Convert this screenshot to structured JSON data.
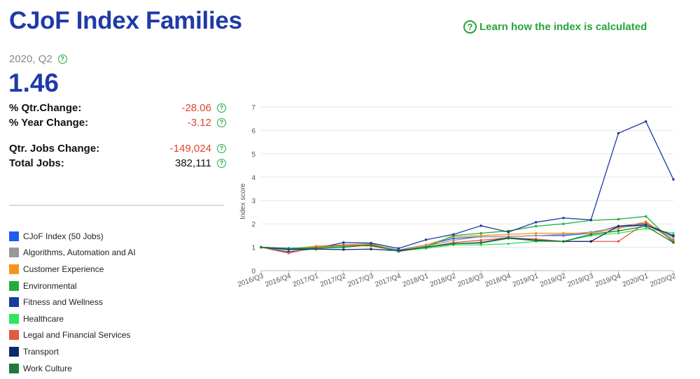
{
  "header": {
    "title": "CJoF Index Families",
    "learn_link": "Learn how the index is calculated"
  },
  "summary": {
    "period": "2020, Q2",
    "index_value": "1.46",
    "stats": [
      {
        "label": "% Qtr.Change:",
        "value": "-28.06",
        "negative": true
      },
      {
        "label": "% Year Change:",
        "value": "-3.12",
        "negative": true
      },
      {
        "label": "Qtr. Jobs Change:",
        "value": "-149,024",
        "negative": true
      },
      {
        "label": "Total Jobs:",
        "value": "382,111",
        "negative": false
      }
    ]
  },
  "legend": [
    {
      "label": "CJoF Index (50 Jobs)",
      "color": "#1e5bf0"
    },
    {
      "label": "Algorithms, Automation and AI",
      "color": "#999999"
    },
    {
      "label": "Customer Experience",
      "color": "#f7941d"
    },
    {
      "label": "Environmental",
      "color": "#1fae3e"
    },
    {
      "label": "Fitness and Wellness",
      "color": "#1a3aa0"
    },
    {
      "label": "Healthcare",
      "color": "#2ee55e"
    },
    {
      "label": "Legal and Financial Services",
      "color": "#e05a3c"
    },
    {
      "label": "Transport",
      "color": "#0a2a6b"
    },
    {
      "label": "Work Culture",
      "color": "#1d7a3a"
    }
  ],
  "chart_data": {
    "type": "line",
    "ylabel": "Index score",
    "ylim": [
      0,
      7
    ],
    "yticks": [
      0,
      1,
      2,
      3,
      4,
      5,
      6,
      7
    ],
    "grid": true,
    "categories": [
      "2016/Q3",
      "2016/Q4",
      "2017/Q1",
      "2017/Q2",
      "2017/Q3",
      "2017/Q4",
      "2018/Q1",
      "2018/Q2",
      "2018/Q3",
      "2018/Q4",
      "2019/Q1",
      "2019/Q2",
      "2019/Q3",
      "2019/Q4",
      "2020/Q1",
      "2020/Q2"
    ],
    "series": [
      {
        "name": "CJoF Index (50 Jobs)",
        "color": "#1e5bf0",
        "values": [
          1.0,
          0.92,
          0.98,
          1.08,
          1.12,
          0.88,
          1.1,
          1.38,
          1.45,
          1.45,
          1.5,
          1.5,
          1.6,
          1.9,
          2.02,
          1.46
        ]
      },
      {
        "name": "Algorithms, Automation and AI",
        "color": "#999999",
        "values": [
          1.0,
          0.95,
          1.0,
          1.1,
          1.1,
          0.85,
          1.05,
          1.3,
          1.45,
          1.45,
          1.5,
          1.55,
          1.65,
          1.85,
          1.95,
          1.4
        ]
      },
      {
        "name": "Customer Experience",
        "color": "#f7941d",
        "values": [
          1.0,
          0.92,
          1.05,
          1.1,
          1.15,
          0.85,
          1.1,
          1.45,
          1.5,
          1.55,
          1.6,
          1.6,
          1.6,
          1.8,
          2.1,
          1.25
        ]
      },
      {
        "name": "Environmental",
        "color": "#1fae3e",
        "values": [
          1.0,
          0.95,
          1.0,
          1.05,
          1.1,
          0.85,
          1.0,
          1.5,
          1.6,
          1.7,
          1.9,
          2.0,
          2.15,
          2.2,
          2.32,
          1.2
        ]
      },
      {
        "name": "Fitness and Wellness",
        "color": "#1a3aa0",
        "values": [
          1.0,
          0.8,
          0.95,
          1.2,
          1.18,
          0.95,
          1.32,
          1.55,
          1.92,
          1.65,
          2.07,
          2.25,
          2.17,
          5.88,
          6.38,
          3.9
        ]
      },
      {
        "name": "Healthcare",
        "color": "#2ee55e",
        "values": [
          1.0,
          0.95,
          0.98,
          1.05,
          1.1,
          0.85,
          0.95,
          1.1,
          1.1,
          1.15,
          1.25,
          1.25,
          1.5,
          1.6,
          1.8,
          1.6
        ]
      },
      {
        "name": "Legal and Financial Services",
        "color": "#e05a3c",
        "values": [
          1.0,
          0.75,
          1.0,
          1.1,
          1.05,
          0.85,
          1.0,
          1.2,
          1.3,
          1.4,
          1.35,
          1.25,
          1.25,
          1.25,
          2.05,
          1.3
        ]
      },
      {
        "name": "Transport",
        "color": "#0a2a6b",
        "values": [
          1.0,
          0.9,
          0.92,
          0.9,
          0.92,
          0.85,
          1.0,
          1.15,
          1.2,
          1.4,
          1.3,
          1.25,
          1.25,
          1.9,
          1.95,
          1.5
        ]
      },
      {
        "name": "Work Culture",
        "color": "#1d7a3a",
        "values": [
          1.0,
          0.95,
          0.95,
          1.0,
          1.1,
          0.82,
          1.0,
          1.15,
          1.18,
          1.38,
          1.28,
          1.25,
          1.55,
          1.7,
          1.9,
          1.2
        ]
      }
    ]
  }
}
